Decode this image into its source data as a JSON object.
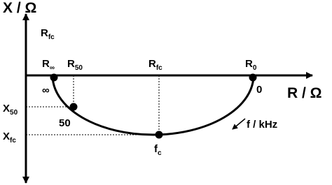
{
  "axes": {
    "y_label": "X / Ω",
    "x_label": "R / Ω"
  },
  "labels": [
    {
      "main": "R",
      "sub": "fc"
    },
    {
      "main": "R",
      "sub": "∞"
    },
    {
      "main": "R",
      "sub": "50"
    },
    {
      "main": "R",
      "sub": "fc"
    },
    {
      "main": "R",
      "sub": "0"
    },
    {
      "main": "X",
      "sub": "50"
    },
    {
      "main": "X",
      "sub": "fc"
    },
    {
      "main": "f",
      "sub": "c"
    }
  ],
  "points": {
    "infinity": "∞",
    "zero": "0",
    "fifty": "50"
  },
  "frequency": "f / kHz"
}
